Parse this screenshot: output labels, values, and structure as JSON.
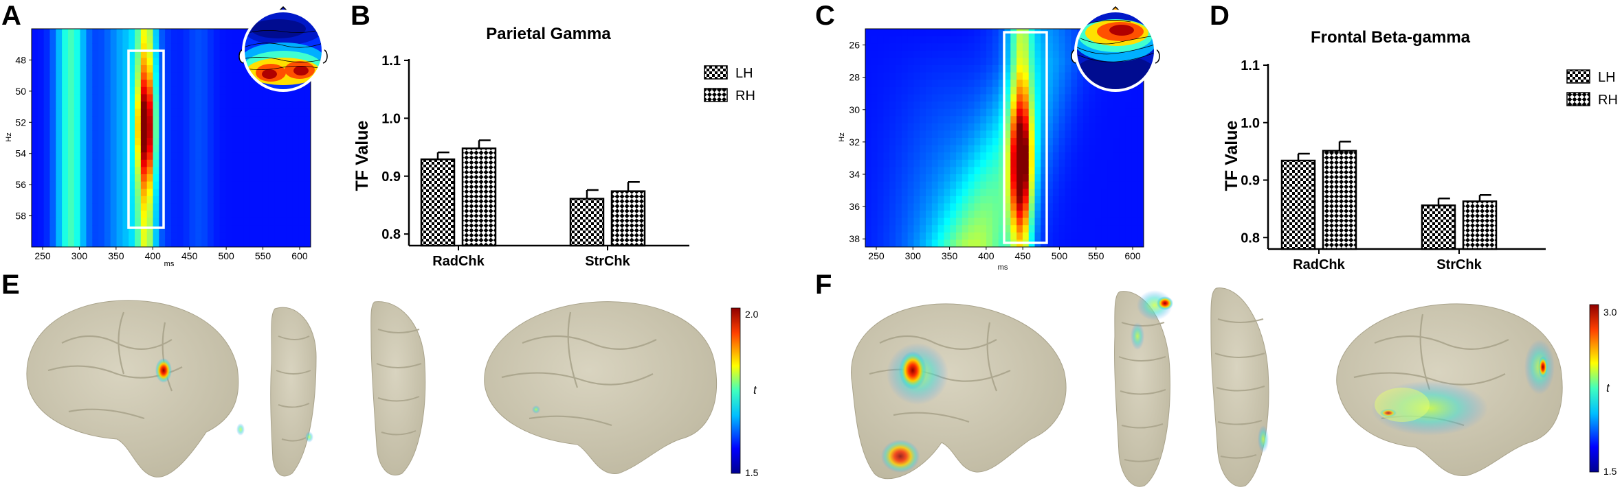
{
  "panels": {
    "A": {
      "letter": "A",
      "xlabel": "ms",
      "ylabel": "Hz",
      "x_ticks": [
        "250",
        "300",
        "350",
        "400",
        "450",
        "500",
        "550",
        "600"
      ],
      "y_ticks": [
        "48",
        "50",
        "52",
        "54",
        "56",
        "58"
      ]
    },
    "B": {
      "letter": "B",
      "title": "Parietal Gamma",
      "ylabel": "TF Value",
      "y_ticks": [
        "0.8",
        "0.9",
        "1.0",
        "1.1"
      ]
    },
    "C": {
      "letter": "C",
      "xlabel": "ms",
      "ylabel": "Hz",
      "x_ticks": [
        "250",
        "300",
        "350",
        "400",
        "450",
        "500",
        "550",
        "600"
      ],
      "y_ticks": [
        "26",
        "28",
        "30",
        "32",
        "34",
        "36",
        "38"
      ]
    },
    "D": {
      "letter": "D",
      "title": "Frontal Beta-gamma",
      "ylabel": "TF Value",
      "y_ticks": [
        "0.8",
        "0.9",
        "1.0",
        "1.1"
      ]
    },
    "E": {
      "letter": "E",
      "colorbar_max": "2.0",
      "colorbar_min": "1.5",
      "colorbar_label": "t"
    },
    "F": {
      "letter": "F",
      "colorbar_max": "3.0",
      "colorbar_min": "1.5",
      "colorbar_label": "t"
    }
  },
  "chart_data": [
    {
      "panel": "B",
      "type": "bar",
      "title": "Parietal Gamma",
      "ylabel": "TF Value",
      "ylim": [
        0.78,
        1.1
      ],
      "categories": [
        "RadChk",
        "StrChk"
      ],
      "series": [
        {
          "name": "LH",
          "values": [
            0.929,
            0.861
          ],
          "errors": [
            0.012,
            0.015
          ]
        },
        {
          "name": "RH",
          "values": [
            0.948,
            0.874
          ],
          "errors": [
            0.014,
            0.016
          ]
        }
      ],
      "legend": "top-right"
    },
    {
      "panel": "D",
      "type": "bar",
      "title": "Frontal Beta-gamma",
      "ylabel": "TF Value",
      "ylim": [
        0.78,
        1.1
      ],
      "categories": [
        "RadChk",
        "StrChk"
      ],
      "series": [
        {
          "name": "LH",
          "values": [
            0.934,
            0.856
          ],
          "errors": [
            0.012,
            0.012
          ]
        },
        {
          "name": "RH",
          "values": [
            0.951,
            0.863
          ],
          "errors": [
            0.016,
            0.011
          ]
        }
      ],
      "legend": "top-right"
    },
    {
      "panel": "A",
      "type": "heatmap",
      "xlabel": "ms",
      "ylabel": "Hz",
      "x_range": [
        235,
        615
      ],
      "y_range": [
        46,
        60
      ],
      "highlight_window_ms": [
        370,
        415
      ],
      "peak_ms": 395,
      "peak_hz": 53
    },
    {
      "panel": "C",
      "type": "heatmap",
      "xlabel": "ms",
      "ylabel": "Hz",
      "x_range": [
        235,
        615
      ],
      "y_range": [
        25,
        38.5
      ],
      "highlight_window_ms": [
        415,
        475
      ],
      "peak_ms": 450,
      "peak_hz": 34
    }
  ]
}
